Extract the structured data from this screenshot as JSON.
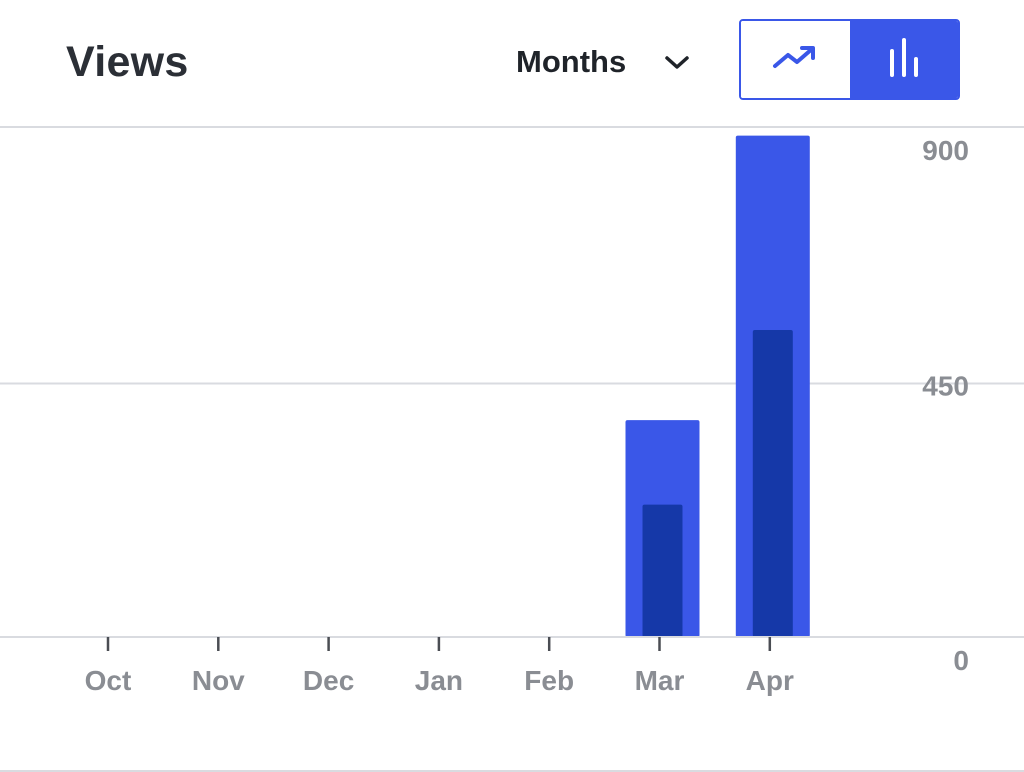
{
  "header": {
    "title": "Views",
    "period_select": {
      "selected": "Months"
    },
    "chart_toggle": {
      "options": [
        "line-chart-icon",
        "bar-chart-icon"
      ],
      "active": "bar-chart-icon"
    }
  },
  "colors": {
    "accent": "#3a57e8",
    "bar_outer": "#3a57e8",
    "bar_inner": "#1538a8",
    "grid": "#d9dbe0",
    "axis_text": "#8a8d93"
  },
  "chart_data": {
    "type": "bar",
    "categories": [
      "Oct",
      "Nov",
      "Dec",
      "Jan",
      "Feb",
      "Mar",
      "Apr"
    ],
    "series": [
      {
        "values": [
          0,
          0,
          0,
          0,
          0,
          385,
          890
        ]
      },
      {
        "values": [
          0,
          0,
          0,
          0,
          0,
          235,
          545
        ]
      }
    ],
    "yticks": [
      "0",
      "450",
      "900"
    ],
    "ylim": [
      0,
      900
    ],
    "grid": true,
    "y_axis_side": "right"
  }
}
